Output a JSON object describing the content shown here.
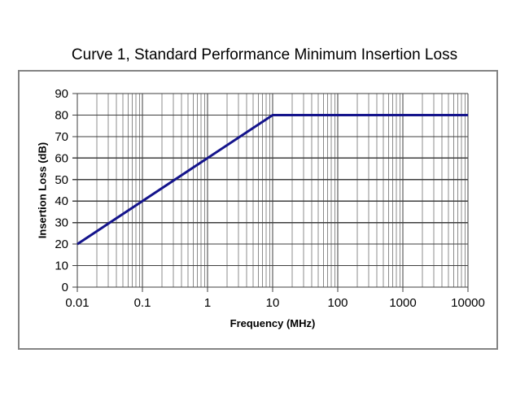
{
  "page": {
    "background": "#ffffff"
  },
  "chart_data": {
    "type": "line",
    "title": "Curve 1, Standard Performance Minimum Insertion Loss",
    "xlabel": "Frequency (MHz)",
    "ylabel": "Insertion Loss (dB)",
    "x_scale": "log",
    "xlim": [
      0.01,
      10000
    ],
    "ylim": [
      0,
      90
    ],
    "x_ticks": [
      0.01,
      0.1,
      1,
      10,
      100,
      1000,
      10000
    ],
    "x_tick_labels": [
      "0.01",
      "0.1",
      "1",
      "10",
      "100",
      "1000",
      "10000"
    ],
    "y_ticks": [
      0,
      10,
      20,
      30,
      40,
      50,
      60,
      70,
      80,
      90
    ],
    "grid": {
      "x_major": true,
      "x_minor_log": true,
      "y_major": true,
      "y_minor": false
    },
    "legend_position": "none",
    "series": [
      {
        "name": "Curve 1",
        "color": "#14148c",
        "points": [
          [
            0.01,
            20
          ],
          [
            10,
            80
          ],
          [
            10000,
            80
          ]
        ]
      }
    ],
    "colors": {
      "grid_major": "#3f3f3f",
      "grid_minor": "#8c8c8c",
      "axis": "#3f3f3f",
      "frame_border": "#848484",
      "text": "#000000"
    }
  }
}
